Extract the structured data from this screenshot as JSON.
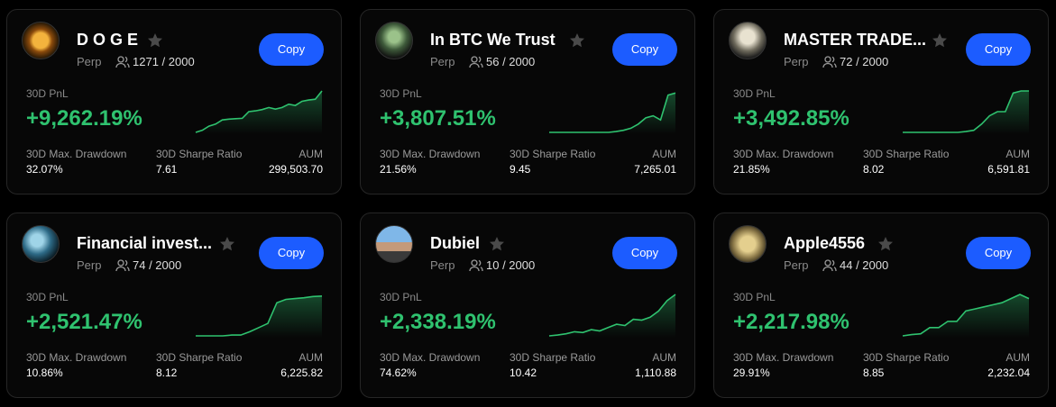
{
  "cards": [
    {
      "name": "D O G E",
      "market": "Perp",
      "copiers": "1271 / 2000",
      "button": "Copy",
      "pnl_label": "30D PnL",
      "pnl": "+9,262.19%",
      "stats": [
        {
          "label": "30D Max. Drawdown",
          "value": "32.07%"
        },
        {
          "label": "30D Sharpe Ratio",
          "value": "7.61"
        },
        {
          "label": "AUM",
          "value": "299,503.70"
        }
      ]
    },
    {
      "name": "In BTC We Trust",
      "market": "Perp",
      "copiers": "56 / 2000",
      "button": "Copy",
      "pnl_label": "30D PnL",
      "pnl": "+3,807.51%",
      "stats": [
        {
          "label": "30D Max. Drawdown",
          "value": "21.56%"
        },
        {
          "label": "30D Sharpe Ratio",
          "value": "9.45"
        },
        {
          "label": "AUM",
          "value": "7,265.01"
        }
      ]
    },
    {
      "name": "MASTER TRADE...",
      "market": "Perp",
      "copiers": "72 / 2000",
      "button": "Copy",
      "pnl_label": "30D PnL",
      "pnl": "+3,492.85%",
      "stats": [
        {
          "label": "30D Max. Drawdown",
          "value": "21.85%"
        },
        {
          "label": "30D Sharpe Ratio",
          "value": "8.02"
        },
        {
          "label": "AUM",
          "value": "6,591.81"
        }
      ]
    },
    {
      "name": "Financial invest...",
      "market": "Perp",
      "copiers": "74 / 2000",
      "button": "Copy",
      "pnl_label": "30D PnL",
      "pnl": "+2,521.47%",
      "stats": [
        {
          "label": "30D Max. Drawdown",
          "value": "10.86%"
        },
        {
          "label": "30D Sharpe Ratio",
          "value": "8.12"
        },
        {
          "label": "AUM",
          "value": "6,225.82"
        }
      ]
    },
    {
      "name": "Dubiel",
      "market": "Perp",
      "copiers": "10 / 2000",
      "button": "Copy",
      "pnl_label": "30D PnL",
      "pnl": "+2,338.19%",
      "stats": [
        {
          "label": "30D Max. Drawdown",
          "value": "74.62%"
        },
        {
          "label": "30D Sharpe Ratio",
          "value": "10.42"
        },
        {
          "label": "AUM",
          "value": "1,110.88"
        }
      ]
    },
    {
      "name": "Apple4556",
      "market": "Perp",
      "copiers": "44 / 2000",
      "button": "Copy",
      "pnl_label": "30D PnL",
      "pnl": "+2,217.98%",
      "stats": [
        {
          "label": "30D Max. Drawdown",
          "value": "29.91%"
        },
        {
          "label": "30D Sharpe Ratio",
          "value": "8.85"
        },
        {
          "label": "AUM",
          "value": "2,232.04"
        }
      ]
    }
  ]
}
